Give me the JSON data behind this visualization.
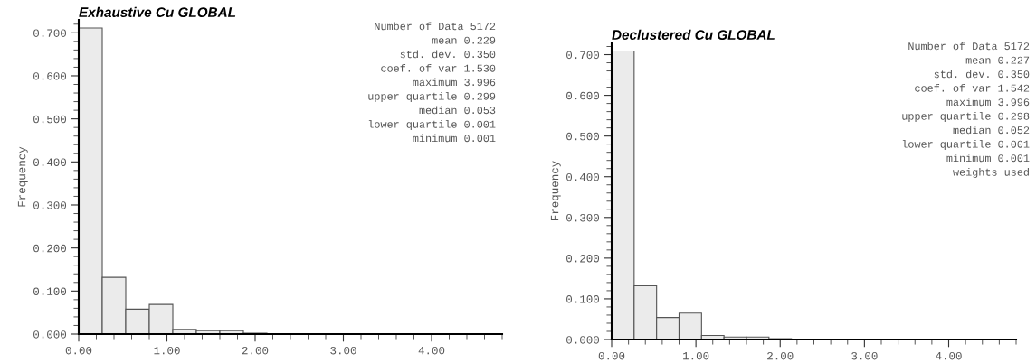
{
  "chart_data": [
    {
      "type": "histogram",
      "title": "Exhaustive Cu GLOBAL",
      "ylabel": "Frequency",
      "color": "#ebebeb",
      "bins": [
        0,
        0.2667,
        0.5333,
        0.8,
        1.0667,
        1.3333,
        1.6,
        1.8667,
        2.1333
      ],
      "values": [
        0.711,
        0.132,
        0.058,
        0.069,
        0.011,
        0.008,
        0.008,
        0.002
      ],
      "xlim": [
        0,
        4.8
      ],
      "xticks": [
        {
          "value": 0,
          "label": "0.00"
        },
        {
          "value": 1,
          "label": "1.00"
        },
        {
          "value": 2,
          "label": "2.00"
        },
        {
          "value": 3,
          "label": "3.00"
        },
        {
          "value": 4,
          "label": "4.00"
        }
      ],
      "ylim": [
        0,
        0.73
      ],
      "yticks": [
        {
          "value": 0,
          "label": "0.000"
        },
        {
          "value": 0.1,
          "label": "0.100"
        },
        {
          "value": 0.2,
          "label": "0.200"
        },
        {
          "value": 0.3,
          "label": "0.300"
        },
        {
          "value": 0.4,
          "label": "0.400"
        },
        {
          "value": 0.5,
          "label": "0.500"
        },
        {
          "value": 0.6,
          "label": "0.600"
        },
        {
          "value": 0.7,
          "label": "0.700"
        }
      ],
      "grid": false,
      "annotations": [
        "Number of Data 5172",
        "mean 0.229",
        "std. dev. 0.350",
        "coef. of var 1.530",
        "maximum 3.996",
        "upper quartile 0.299",
        "median 0.053",
        "lower quartile 0.001",
        "minimum 0.001"
      ]
    },
    {
      "type": "histogram",
      "title": "Declustered Cu GLOBAL",
      "ylabel": "Frequency",
      "color": "#ebebeb",
      "bins": [
        0,
        0.2667,
        0.5333,
        0.8,
        1.0667,
        1.3333,
        1.6,
        1.8667,
        2.1333
      ],
      "values": [
        0.709,
        0.132,
        0.054,
        0.065,
        0.01,
        0.006,
        0.006,
        0.002
      ],
      "xlim": [
        0,
        4.8
      ],
      "xticks": [
        {
          "value": 0,
          "label": "0.00"
        },
        {
          "value": 1,
          "label": "1.00"
        },
        {
          "value": 2,
          "label": "2.00"
        },
        {
          "value": 3,
          "label": "3.00"
        },
        {
          "value": 4,
          "label": "4.00"
        }
      ],
      "ylim": [
        0,
        0.73
      ],
      "yticks": [
        {
          "value": 0,
          "label": "0.000"
        },
        {
          "value": 0.1,
          "label": "0.100"
        },
        {
          "value": 0.2,
          "label": "0.200"
        },
        {
          "value": 0.3,
          "label": "0.300"
        },
        {
          "value": 0.4,
          "label": "0.400"
        },
        {
          "value": 0.5,
          "label": "0.500"
        },
        {
          "value": 0.6,
          "label": "0.600"
        },
        {
          "value": 0.7,
          "label": "0.700"
        }
      ],
      "grid": false,
      "annotations": [
        "Number of Data 5172",
        "mean 0.227",
        "std. dev. 0.350",
        "coef. of var 1.542",
        "maximum 3.996",
        "upper quartile 0.298",
        "median 0.052",
        "lower quartile 0.001",
        "minimum 0.001",
        "weights used"
      ]
    }
  ]
}
